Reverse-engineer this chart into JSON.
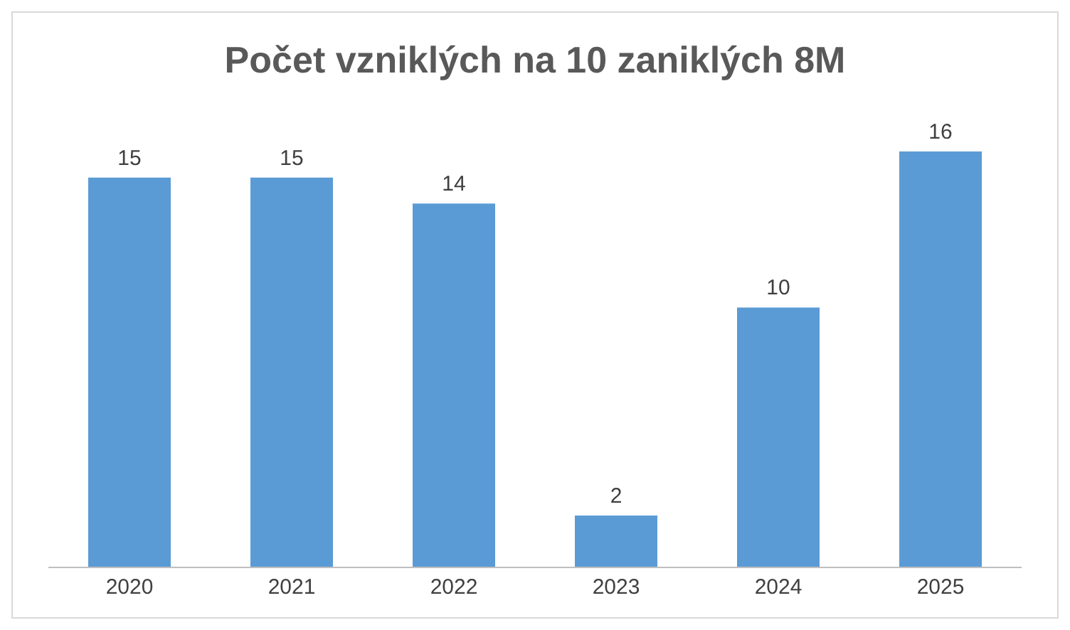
{
  "chart_data": {
    "type": "bar",
    "title": "Počet vzniklých na 10 zaniklých 8M",
    "categories": [
      "2020",
      "2021",
      "2022",
      "2023",
      "2024",
      "2025"
    ],
    "values": [
      15,
      15,
      14,
      2,
      10,
      16
    ],
    "color": "#5b9bd5",
    "data_labels": true
  }
}
